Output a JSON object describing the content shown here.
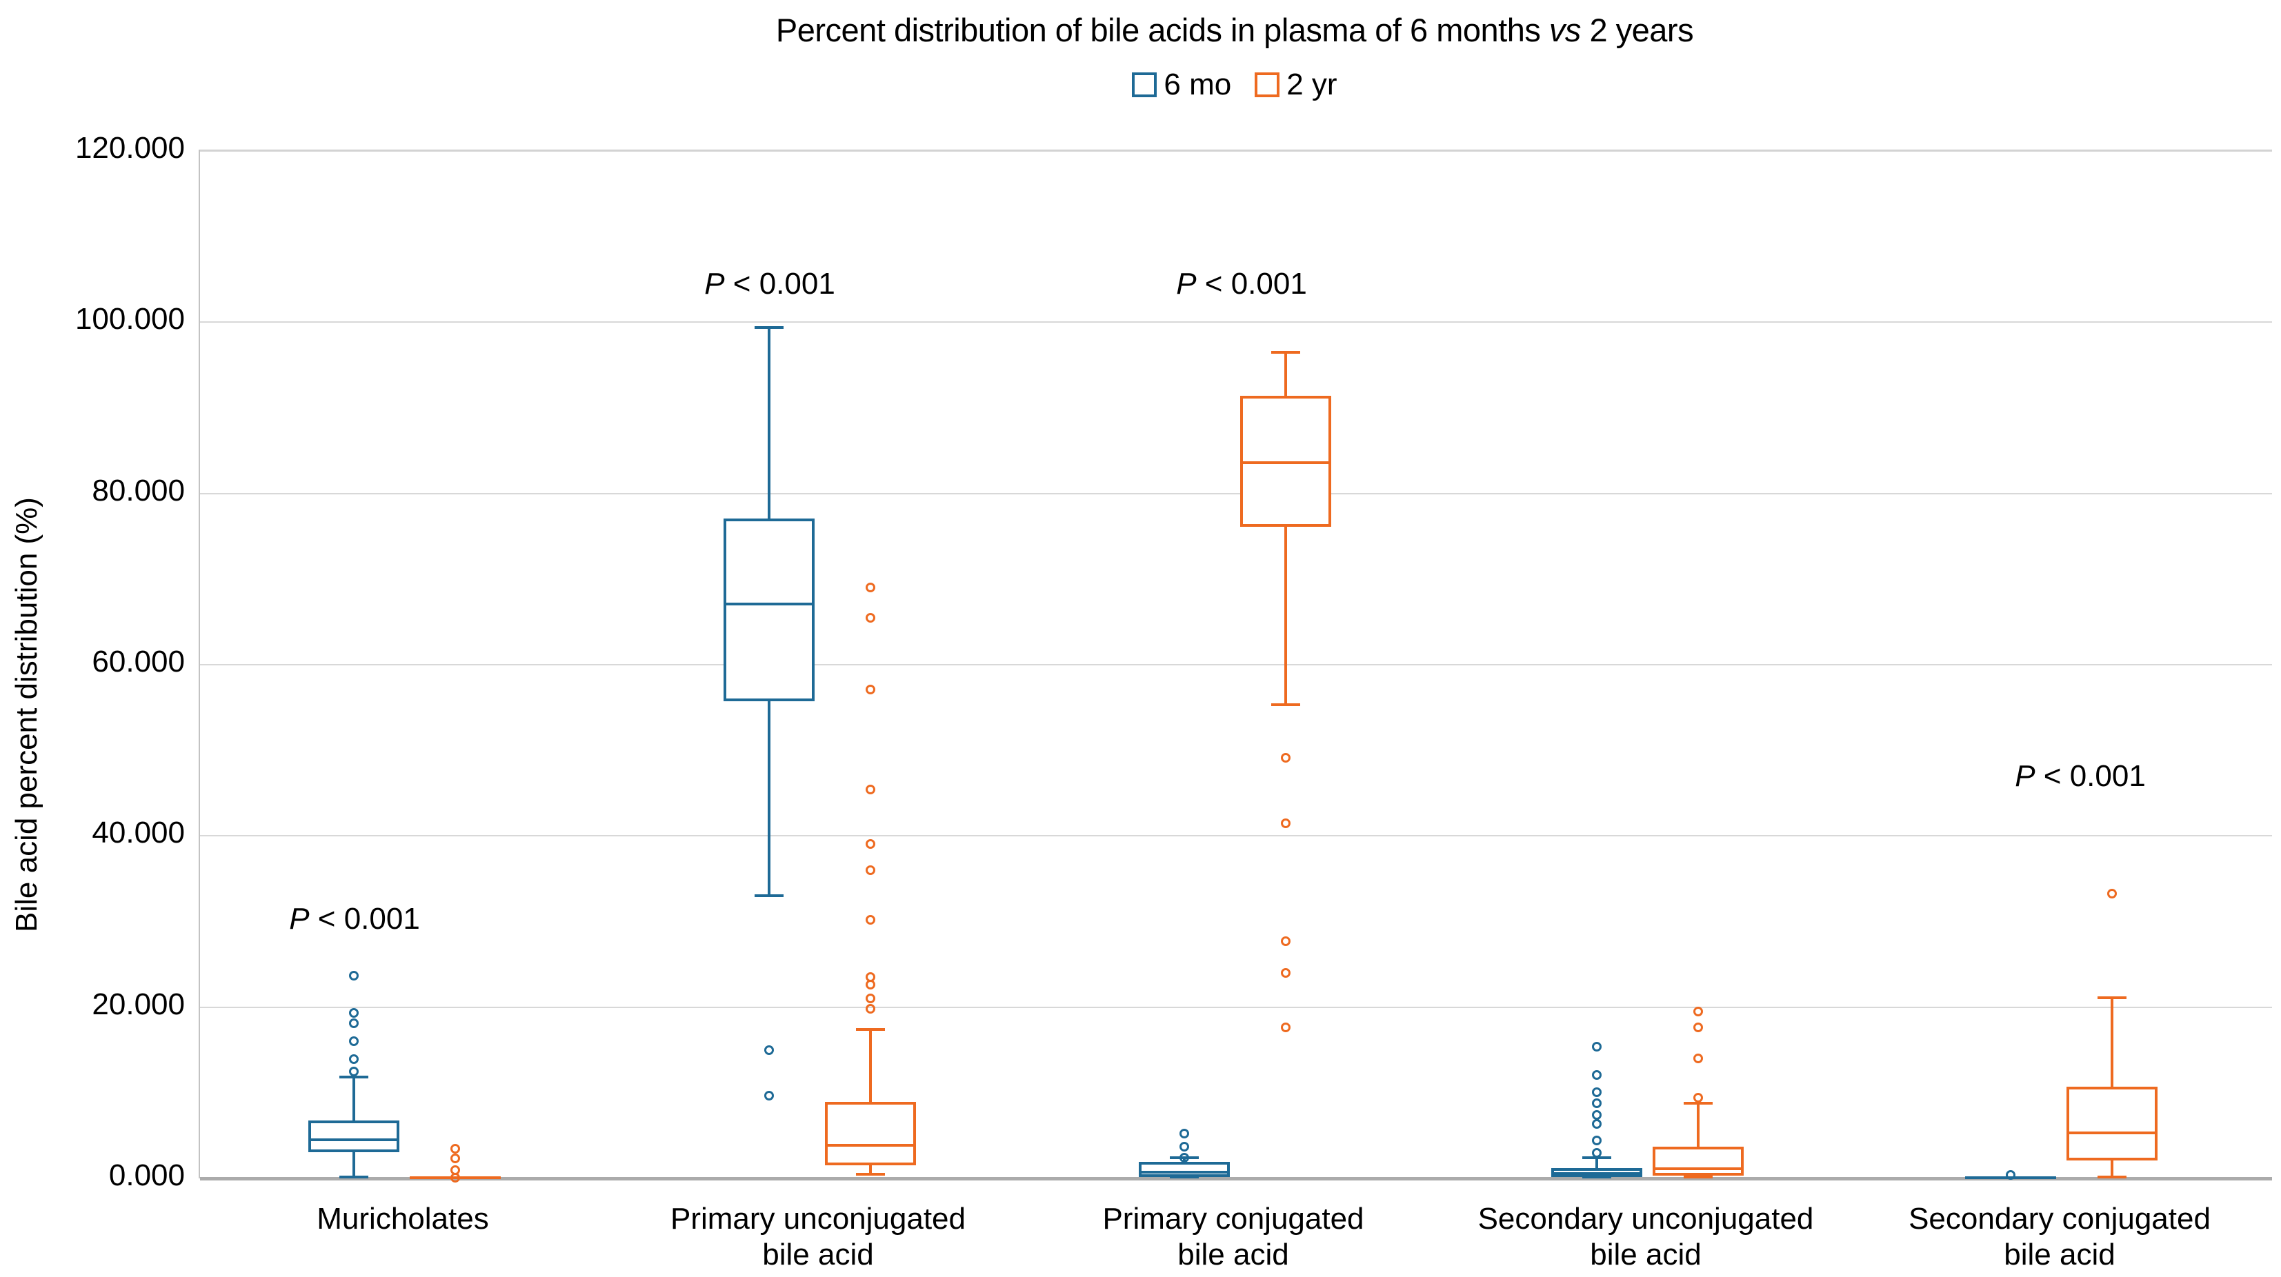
{
  "chart_data": {
    "type": "boxplot",
    "title_parts": [
      "Percent distribution of bile acids in plasma of 6 months ",
      "vs",
      " 2 years"
    ],
    "ylabel": "Bile acid percent distribution (%)",
    "ylim": [
      0,
      120
    ],
    "ytick_step": 20,
    "ytick_labels": [
      "0.000",
      "20.000",
      "40.000",
      "60.000",
      "80.000",
      "100.000",
      "120.000"
    ],
    "grid": "horizontal",
    "legend_position": "top-center",
    "legend": [
      {
        "label": "6 mo",
        "color": "#1E6A96"
      },
      {
        "label": "2 yr",
        "color": "#EE6A20"
      }
    ],
    "categories": [
      {
        "label_lines": [
          "Muricholates"
        ]
      },
      {
        "label_lines": [
          "Primary unconjugated",
          "bile acid"
        ]
      },
      {
        "label_lines": [
          "Primary conjugated",
          "bile acid"
        ]
      },
      {
        "label_lines": [
          "Secondary unconjugated",
          "bile acid"
        ]
      },
      {
        "label_lines": [
          "Secondary conjugated",
          "bile acid"
        ]
      }
    ],
    "annotations": [
      {
        "group": 0,
        "italic": "P",
        "text": " < 0.001"
      },
      {
        "group": 1,
        "italic": "P",
        "text": " < 0.001"
      },
      {
        "group": 2,
        "italic": "P",
        "text": " < 0.001"
      },
      {
        "group": 4,
        "italic": "P",
        "text": " < 0.001"
      }
    ],
    "groups": [
      {
        "category": "Muricholates",
        "series": [
          {
            "name": "6 mo",
            "whisker_low": 0,
            "q1": 3.1,
            "median": 4.5,
            "q3": 6.8,
            "whisker_high": 11.8,
            "outliers": [
              12.5,
              13.9,
              16.0,
              18.1,
              19.3,
              23.7
            ]
          },
          {
            "name": "2 yr",
            "whisker_low": 0,
            "q1": 0,
            "median": 0.05,
            "q3": 0.15,
            "whisker_high": 0.15,
            "outliers": [
              0.1,
              1.0,
              2.3,
              3.5
            ]
          }
        ]
      },
      {
        "category": "Primary unconjugated bile acid",
        "series": [
          {
            "name": "6 mo",
            "whisker_low": 33.0,
            "q1": 55.7,
            "median": 67.1,
            "q3": 77.1,
            "whisker_high": 99.4,
            "outliers": [
              9.7,
              15.0
            ]
          },
          {
            "name": "2 yr",
            "whisker_low": 0.5,
            "q1": 1.5,
            "median": 3.9,
            "q3": 8.9,
            "whisker_high": 17.4,
            "outliers": [
              19.8,
              21.0,
              22.6,
              23.5,
              30.2,
              36.0,
              39.1,
              45.4,
              57.1,
              65.5,
              69.0
            ]
          }
        ]
      },
      {
        "category": "Primary conjugated bile acid",
        "series": [
          {
            "name": "6 mo",
            "whisker_low": 0,
            "q1": 0.2,
            "median": 0.7,
            "q3": 1.9,
            "whisker_high": 2.4,
            "outliers": [
              2.4,
              3.7,
              5.2
            ]
          },
          {
            "name": "2 yr",
            "whisker_low": 55.3,
            "q1": 76.1,
            "median": 83.6,
            "q3": 91.4,
            "whisker_high": 96.5,
            "outliers": [
              17.6,
              24.0,
              27.7,
              41.5,
              49.1
            ]
          }
        ]
      },
      {
        "category": "Secondary unconjugated bile acid",
        "series": [
          {
            "name": "6 mo",
            "whisker_low": 0,
            "q1": 0.2,
            "median": 0.6,
            "q3": 1.2,
            "whisker_high": 2.4,
            "outliers": [
              3.0,
              4.4,
              6.4,
              7.4,
              8.8,
              10.1,
              12.1,
              15.4
            ]
          },
          {
            "name": "2 yr",
            "whisker_low": 0,
            "q1": 0.3,
            "median": 1.1,
            "q3": 3.7,
            "whisker_high": 8.8,
            "outliers": [
              9.4,
              14.0,
              17.6,
              19.5
            ]
          }
        ]
      },
      {
        "category": "Secondary conjugated bile acid",
        "series": [
          {
            "name": "6 mo",
            "whisker_low": 0,
            "q1": 0,
            "median": 0.05,
            "q3": 0.12,
            "whisker_high": 0.12,
            "outliers": [
              0.4
            ]
          },
          {
            "name": "2 yr",
            "whisker_low": 0.2,
            "q1": 2.1,
            "median": 5.3,
            "q3": 10.7,
            "whisker_high": 21.1,
            "outliers": [
              33.3
            ]
          }
        ]
      }
    ]
  }
}
